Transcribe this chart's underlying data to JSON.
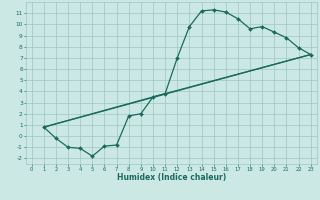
{
  "xlabel": "Humidex (Indice chaleur)",
  "bg_color": "#cce8e4",
  "grid_color": "#9dc8c2",
  "line_color": "#1a6b5e",
  "xlim": [
    -0.5,
    23.5
  ],
  "ylim": [
    -2.5,
    12.0
  ],
  "xticks": [
    0,
    1,
    2,
    3,
    4,
    5,
    6,
    7,
    8,
    9,
    10,
    11,
    12,
    13,
    14,
    15,
    16,
    17,
    18,
    19,
    20,
    21,
    22,
    23
  ],
  "yticks": [
    -2,
    -1,
    0,
    1,
    2,
    3,
    4,
    5,
    6,
    7,
    8,
    9,
    10,
    11
  ],
  "line1_x": [
    1,
    2,
    3,
    4,
    5,
    6,
    7,
    8,
    9,
    10,
    11,
    12,
    13,
    14,
    15,
    16,
    17,
    18,
    19,
    20,
    21,
    22,
    23
  ],
  "line1_y": [
    0.8,
    -0.2,
    -1.0,
    -1.1,
    -1.8,
    -0.9,
    -0.8,
    1.8,
    2.0,
    3.5,
    3.8,
    7.0,
    9.8,
    11.2,
    11.3,
    11.1,
    10.5,
    9.6,
    9.8,
    9.3,
    8.8,
    7.9,
    7.3
  ],
  "line2_x": [
    1,
    23
  ],
  "line2_y": [
    0.8,
    7.3
  ],
  "line3_x": [
    1,
    10,
    23
  ],
  "line3_y": [
    0.8,
    3.5,
    7.3
  ]
}
